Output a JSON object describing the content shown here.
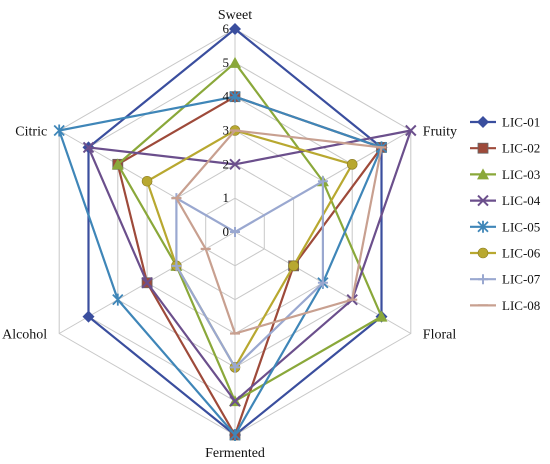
{
  "chart_data": {
    "type": "radar",
    "axes": [
      "Sweet",
      "Fruity",
      "Floral",
      "Fermented",
      "Alcohol",
      "Citric"
    ],
    "range": [
      0,
      6
    ],
    "ticks": [
      "0",
      "1",
      "2",
      "3",
      "4",
      "5",
      "6"
    ],
    "legend_position": "right",
    "series": [
      {
        "name": "LIC-01",
        "color": "#3a4e9e",
        "marker": "diamond",
        "values": [
          6,
          5,
          5,
          6,
          5,
          5
        ]
      },
      {
        "name": "LIC-02",
        "color": "#9e4a3a",
        "marker": "square",
        "values": [
          4,
          5,
          2,
          6,
          3,
          4
        ]
      },
      {
        "name": "LIC-03",
        "color": "#8aa83a",
        "marker": "triangle",
        "values": [
          5,
          3,
          5,
          5,
          2,
          4
        ]
      },
      {
        "name": "LIC-04",
        "color": "#6b4f8c",
        "marker": "x",
        "values": [
          2,
          6,
          4,
          5,
          3,
          5
        ]
      },
      {
        "name": "LIC-05",
        "color": "#3f86b8",
        "marker": "star",
        "values": [
          4,
          5,
          3,
          6,
          4,
          6
        ]
      },
      {
        "name": "LIC-06",
        "color": "#b8a830",
        "marker": "circle",
        "values": [
          3,
          4,
          2,
          4,
          2,
          3
        ]
      },
      {
        "name": "LIC-07",
        "color": "#9aa8d0",
        "marker": "plus",
        "values": [
          0,
          3,
          3,
          4,
          2,
          2
        ]
      },
      {
        "name": "LIC-08",
        "color": "#c8a090",
        "marker": "dash",
        "values": [
          3,
          5,
          4,
          3,
          1,
          2
        ]
      }
    ]
  }
}
